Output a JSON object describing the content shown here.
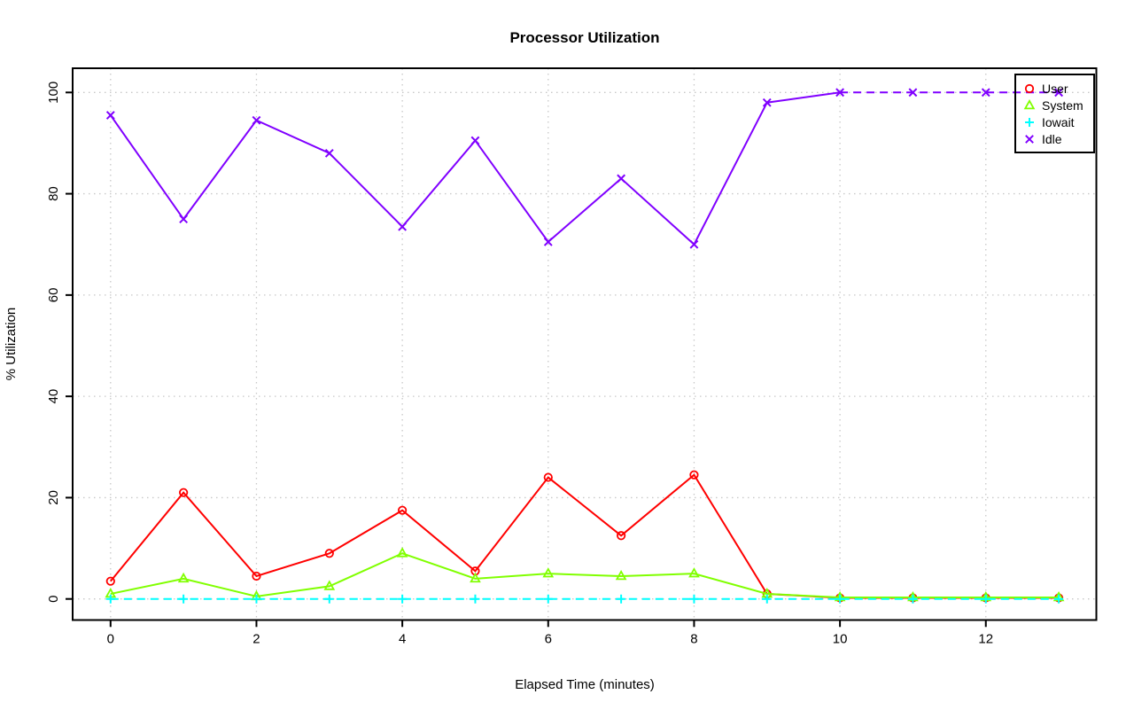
{
  "chart_data": {
    "type": "line",
    "title": "Processor Utilization",
    "xlabel": "Elapsed Time (minutes)",
    "ylabel": "% Utilization",
    "x": [
      0,
      1,
      2,
      3,
      4,
      5,
      6,
      7,
      8,
      9,
      10,
      11,
      12,
      13
    ],
    "xlim": [
      0,
      13
    ],
    "ylim": [
      0,
      100
    ],
    "x_ticks": [
      0,
      2,
      4,
      6,
      8,
      10,
      12
    ],
    "y_ticks": [
      0,
      20,
      40,
      60,
      80,
      100
    ],
    "grid": true,
    "grid_style": "dotted",
    "grid_color": "#c8c8c8",
    "axis_color": "#000000",
    "legend_position": "top-right",
    "series": [
      {
        "name": "User",
        "color": "#FF0000",
        "marker": "circle",
        "line": "solid",
        "values": [
          3.5,
          21,
          4.5,
          9,
          17.5,
          5.5,
          24,
          12.5,
          24.5,
          1,
          0.2,
          0.2,
          0.2,
          0.2
        ]
      },
      {
        "name": "System",
        "color": "#80FF00",
        "marker": "triangle",
        "line": "solid",
        "values": [
          1,
          4,
          0.5,
          2.5,
          9,
          4,
          5,
          4.5,
          5,
          1,
          0.3,
          0.3,
          0.3,
          0.3
        ]
      },
      {
        "name": "Iowait",
        "color": "#00FFFF",
        "marker": "plus",
        "line": "dashed",
        "values": [
          0,
          0,
          0,
          0,
          0,
          0,
          0,
          0,
          0,
          0,
          0,
          0,
          0,
          0
        ]
      },
      {
        "name": "Idle",
        "color": "#8000FF",
        "marker": "x",
        "line": "solid",
        "dash_from_x": 10,
        "values": [
          95.5,
          75,
          94.5,
          88,
          73.5,
          90.5,
          70.5,
          83,
          70,
          98,
          100,
          100,
          100,
          100
        ]
      }
    ]
  }
}
